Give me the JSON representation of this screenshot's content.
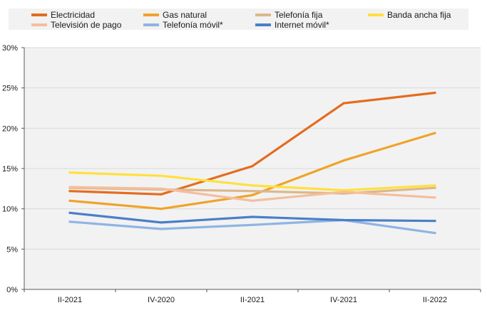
{
  "chart_data": {
    "type": "line",
    "categories": [
      "II-2021",
      "IV-2020",
      "II-2021",
      "IV-2021",
      "II-2022"
    ],
    "ylim": [
      0,
      30
    ],
    "yticks": [
      0,
      5,
      10,
      15,
      20,
      25,
      30
    ],
    "ytick_labels": [
      "0%",
      "5%",
      "10%",
      "15%",
      "20%",
      "25%",
      "30%"
    ],
    "grid": true,
    "legend_position": "top",
    "series": [
      {
        "name": "Electricidad",
        "color": "#E46C1E",
        "values": [
          12.2,
          11.8,
          15.3,
          23.1,
          24.4
        ]
      },
      {
        "name": "Gas natural",
        "color": "#EFA32A",
        "values": [
          11.0,
          10.0,
          11.7,
          16.0,
          19.4
        ]
      },
      {
        "name": "Telefonía fija",
        "color": "#DDB78B",
        "values": [
          12.6,
          12.4,
          12.2,
          11.9,
          12.6
        ]
      },
      {
        "name": "Banda ancha fija",
        "color": "#FFE040",
        "values": [
          14.5,
          14.1,
          12.9,
          12.3,
          12.9
        ]
      },
      {
        "name": "Televisión de pago",
        "color": "#F5BE9B",
        "values": [
          12.7,
          12.5,
          11.0,
          12.1,
          11.4
        ]
      },
      {
        "name": "Telefonía móvil*",
        "color": "#8FB4E3",
        "values": [
          8.4,
          7.5,
          8.0,
          8.6,
          7.0
        ]
      },
      {
        "name": "Internet móvil*",
        "color": "#4A7FC9",
        "values": [
          9.5,
          8.3,
          9.0,
          8.6,
          8.5
        ]
      }
    ]
  }
}
